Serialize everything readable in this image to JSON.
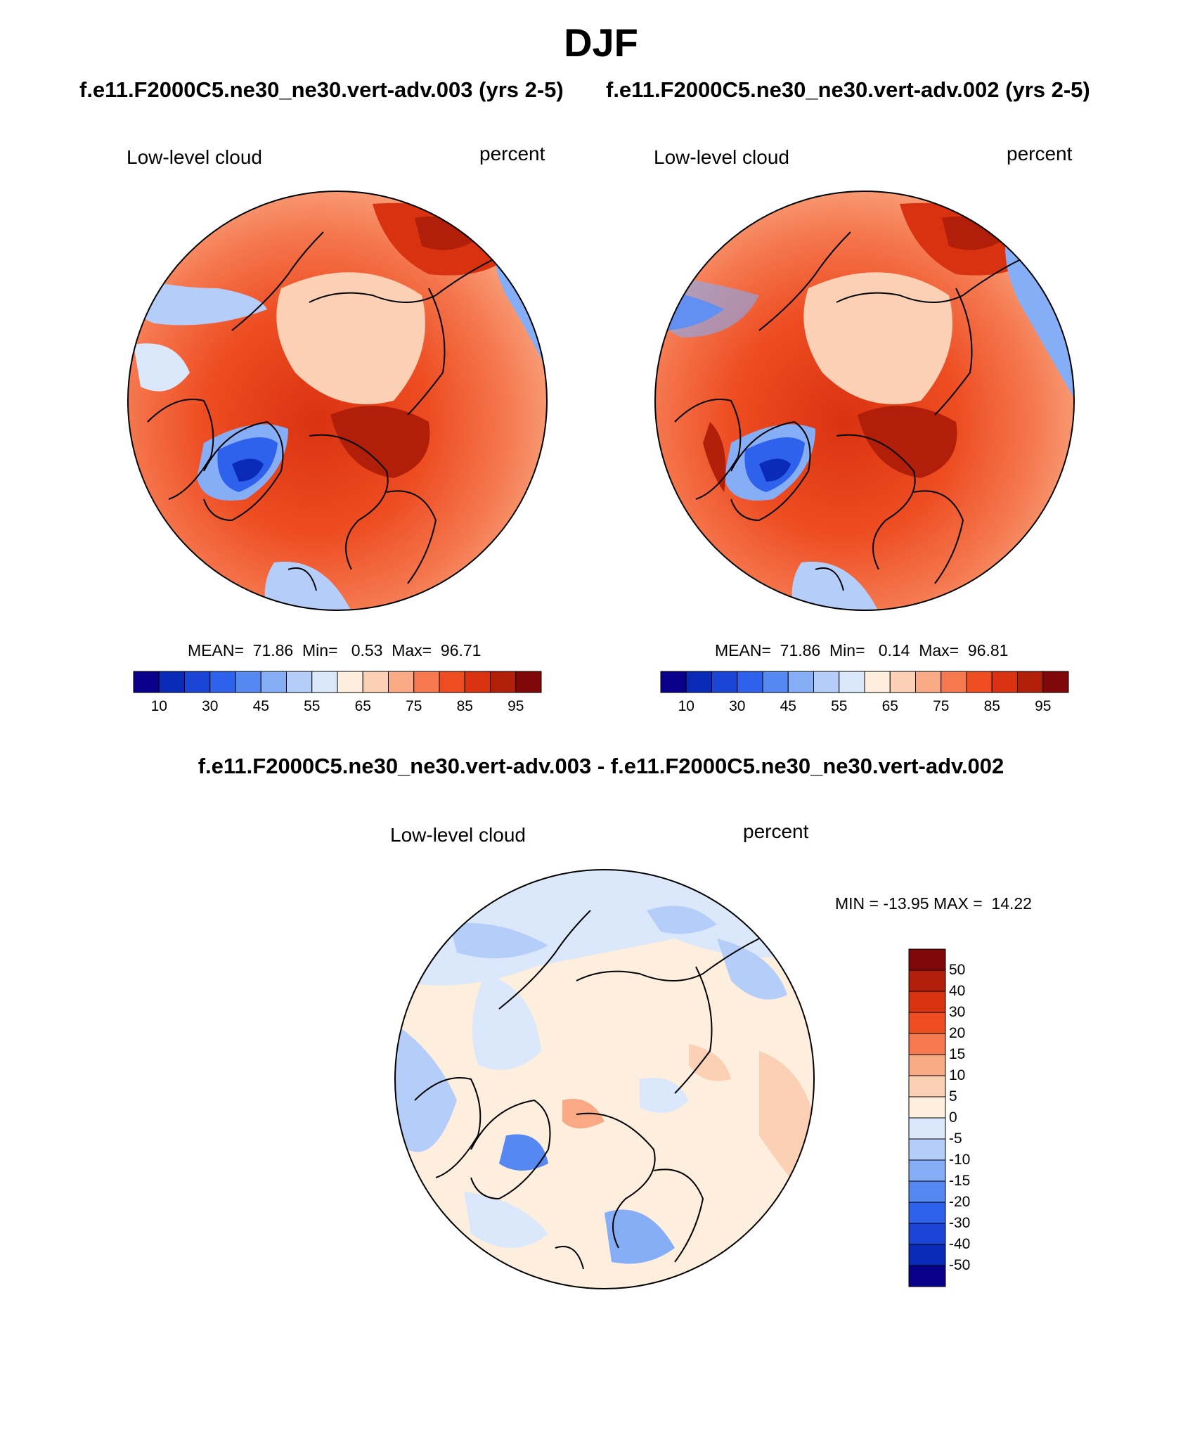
{
  "title": "DJF",
  "panels": [
    {
      "case": "f.e11.F2000C5.ne30_ne30.vert-adv.003 (yrs 2-5)",
      "variable": "Low-level cloud",
      "units": "percent",
      "stats": {
        "mean_label": "MEAN=",
        "mean": "71.86",
        "min_label": "Min=",
        "min": "0.53",
        "max_label": "Max=",
        "max": "96.71"
      }
    },
    {
      "case": "f.e11.F2000C5.ne30_ne30.vert-adv.002 (yrs 2-5)",
      "variable": "Low-level cloud",
      "units": "percent",
      "stats": {
        "mean_label": "MEAN=",
        "mean": "71.86",
        "min_label": "Min=",
        "min": "0.14",
        "max_label": "Max=",
        "max": "96.81"
      }
    }
  ],
  "colorbar": {
    "labels": [
      "10",
      "30",
      "45",
      "55",
      "65",
      "75",
      "85",
      "95"
    ],
    "colors": [
      "#08008a",
      "#0a2ab8",
      "#1a45d6",
      "#2e62ec",
      "#5588f0",
      "#86aef6",
      "#b4cdf9",
      "#dbe8fb",
      "#fdeedd",
      "#fbd0b4",
      "#f9a984",
      "#f5784f",
      "#ee4d22",
      "#d93210",
      "#b11e0a",
      "#800808"
    ]
  },
  "difference": {
    "title": "f.e11.F2000C5.ne30_ne30.vert-adv.003 - f.e11.F2000C5.ne30_ne30.vert-adv.002",
    "variable": "Low-level cloud",
    "units": "percent",
    "stats": "MIN = -13.95 MAX =  14.22",
    "colorbar": {
      "labels": [
        "50",
        "40",
        "30",
        "20",
        "15",
        "10",
        "5",
        "0",
        "-5",
        "-10",
        "-15",
        "-20",
        "-30",
        "-40",
        "-50"
      ],
      "colors": [
        "#800808",
        "#b11e0a",
        "#d93210",
        "#ee4d22",
        "#f5784f",
        "#f9a984",
        "#fbd0b4",
        "#fdeedd",
        "#dbe8fb",
        "#b4cdf9",
        "#86aef6",
        "#5588f0",
        "#2e62ec",
        "#1a45d6",
        "#0a2ab8",
        "#08008a"
      ]
    }
  }
}
